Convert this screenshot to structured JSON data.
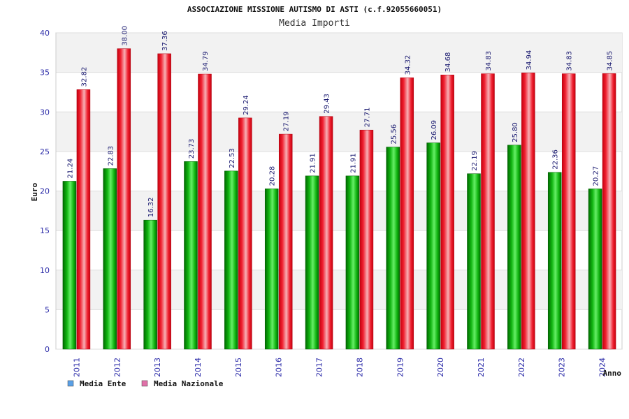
{
  "chart_data": {
    "type": "bar",
    "title": "ASSOCIAZIONE MISSIONE AUTISMO DI ASTI (c.f.92055660051)",
    "subtitle": "Media Importi",
    "xlabel": "Anno",
    "ylabel": "Euro",
    "ylim": [
      0,
      40
    ],
    "yticks": [
      0,
      5,
      10,
      15,
      20,
      25,
      30,
      35,
      40
    ],
    "grid": true,
    "legend_position": "bottom-left",
    "categories": [
      "2011",
      "2012",
      "2013",
      "2014",
      "2015",
      "2016",
      "2017",
      "2018",
      "2019",
      "2020",
      "2021",
      "2022",
      "2023",
      "2024"
    ],
    "series": [
      {
        "name": "Media Ente",
        "color": "#1ec81e",
        "legend_color": "#5aa0e6",
        "values": [
          21.24,
          22.83,
          16.32,
          23.73,
          22.53,
          20.28,
          21.91,
          21.91,
          25.56,
          26.09,
          22.19,
          25.8,
          22.36,
          20.27
        ],
        "labels": [
          "21.24",
          "22.83",
          "16.32",
          "23.73",
          "22.53",
          "20.28",
          "21.91",
          "21.91",
          "25.56",
          "26.09",
          "22.19",
          "25.80",
          "22.36",
          "20.27"
        ]
      },
      {
        "name": "Media Nazionale",
        "color": "#e8202c",
        "legend_color": "#e070a8",
        "values": [
          32.82,
          38.0,
          37.36,
          34.79,
          29.24,
          27.19,
          29.43,
          27.71,
          34.32,
          34.68,
          34.83,
          34.94,
          34.83,
          34.85
        ],
        "labels": [
          "32.82",
          "38.00",
          "37.36",
          "34.79",
          "29.24",
          "27.19",
          "29.43",
          "27.71",
          "34.32",
          "34.68",
          "34.83",
          "34.94",
          "34.83",
          "34.85"
        ]
      }
    ]
  }
}
